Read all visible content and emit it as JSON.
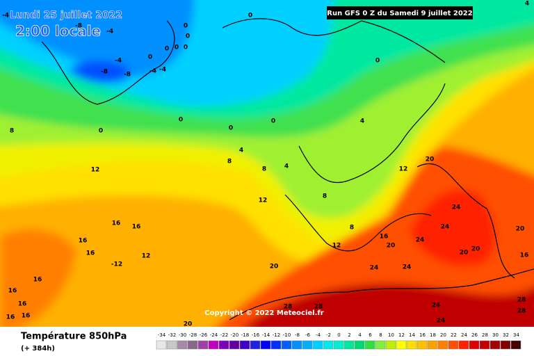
{
  "header": {
    "date": "Lundi 25 juillet 2022",
    "time": "2:00 locale",
    "run": "Run GFS 0 Z du Samedi 9 juillet 2022",
    "copyright": "Copyright © 2022 Meteociel.fr"
  },
  "footer": {
    "parameter": "Température 850hPa",
    "lead": "(+ 384h)"
  },
  "scale": {
    "values": [
      -34,
      -32,
      -30,
      -28,
      -26,
      -24,
      -22,
      -20,
      -18,
      -16,
      -14,
      -12,
      -10,
      -8,
      -6,
      -4,
      -2,
      0,
      2,
      4,
      6,
      8,
      10,
      12,
      14,
      16,
      18,
      20,
      22,
      24,
      26,
      28,
      30,
      32,
      34
    ],
    "colors": [
      "#e8e8e8",
      "#c8c8c8",
      "#a888a8",
      "#886888",
      "#a040a0",
      "#c000c0",
      "#8000c0",
      "#6000a0",
      "#4000c0",
      "#2020e0",
      "#0000ff",
      "#0030ff",
      "#0060ff",
      "#0090ff",
      "#00b0ff",
      "#00d0ff",
      "#00e8f0",
      "#00f0d0",
      "#00e8a0",
      "#00d870",
      "#30e040",
      "#80f040",
      "#c0f000",
      "#ffff00",
      "#ffe000",
      "#ffc000",
      "#ffa000",
      "#ff8000",
      "#ff5000",
      "#ff2000",
      "#e00000",
      "#c00000",
      "#a00000",
      "#800000",
      "#400000"
    ]
  },
  "contour_labels": [
    "-4",
    "-8",
    "-4",
    "0",
    "0",
    "0",
    "0",
    "-4",
    "-8",
    "-8",
    "-4",
    "-4",
    "0",
    "0",
    "0",
    "0",
    "0",
    "0",
    "0",
    "0",
    "4",
    "4",
    "4",
    "8",
    "8",
    "8",
    "8",
    "8",
    "12",
    "12",
    "12",
    "12",
    "16",
    "16",
    "16",
    "16",
    "16",
    "16",
    "-12",
    "12",
    "20",
    "20",
    "20",
    "20",
    "20",
    "20",
    "20",
    "24",
    "24",
    "24",
    "24",
    "24",
    "24",
    "24",
    "28",
    "28",
    "28",
    "28",
    "16",
    "16",
    "16",
    "16",
    "16",
    "4"
  ]
}
